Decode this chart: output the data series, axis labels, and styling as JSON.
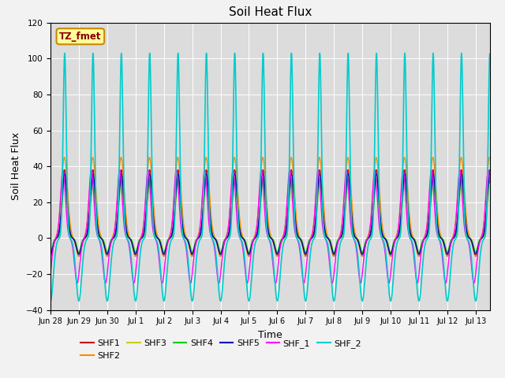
{
  "title": "Soil Heat Flux",
  "xlabel": "Time",
  "ylabel": "Soil Heat Flux",
  "ylim": [
    -40,
    120
  ],
  "background_color": "#dcdcdc",
  "series_order": [
    "SHF1",
    "SHF2",
    "SHF3",
    "SHF4",
    "SHF5",
    "SHF_1",
    "SHF_2"
  ],
  "series": {
    "SHF1": {
      "color": "#cc0000",
      "lw": 1.0
    },
    "SHF2": {
      "color": "#ff8800",
      "lw": 1.0
    },
    "SHF3": {
      "color": "#cccc00",
      "lw": 1.0
    },
    "SHF4": {
      "color": "#00cc00",
      "lw": 1.0
    },
    "SHF5": {
      "color": "#0000bb",
      "lw": 1.0
    },
    "SHF_1": {
      "color": "#ff00ff",
      "lw": 1.0
    },
    "SHF_2": {
      "color": "#00cccc",
      "lw": 1.2
    }
  },
  "annotation_text": "TZ_fmet",
  "annotation_bg": "#ffff99",
  "annotation_border": "#cc8800",
  "annotation_text_color": "#880000",
  "yticks": [
    -40,
    -20,
    0,
    20,
    40,
    60,
    80,
    100,
    120
  ],
  "xtick_labels": [
    "Jun 28",
    "Jun 29",
    "Jun 30",
    "Jul 1",
    "Jul 2",
    "Jul 3",
    "Jul 4",
    "Jul 5",
    "Jul 6",
    "Jul 7",
    "Jul 8",
    "Jul 9",
    "Jul 10",
    "Jul 11",
    "Jul 12",
    "Jul 13"
  ],
  "xtick_positions": [
    0,
    1,
    2,
    3,
    4,
    5,
    6,
    7,
    8,
    9,
    10,
    11,
    12,
    13,
    14,
    15
  ],
  "xlim": [
    0,
    15.5
  ],
  "legend_ncol": 6,
  "legend_row2": [
    "SHF_2"
  ]
}
